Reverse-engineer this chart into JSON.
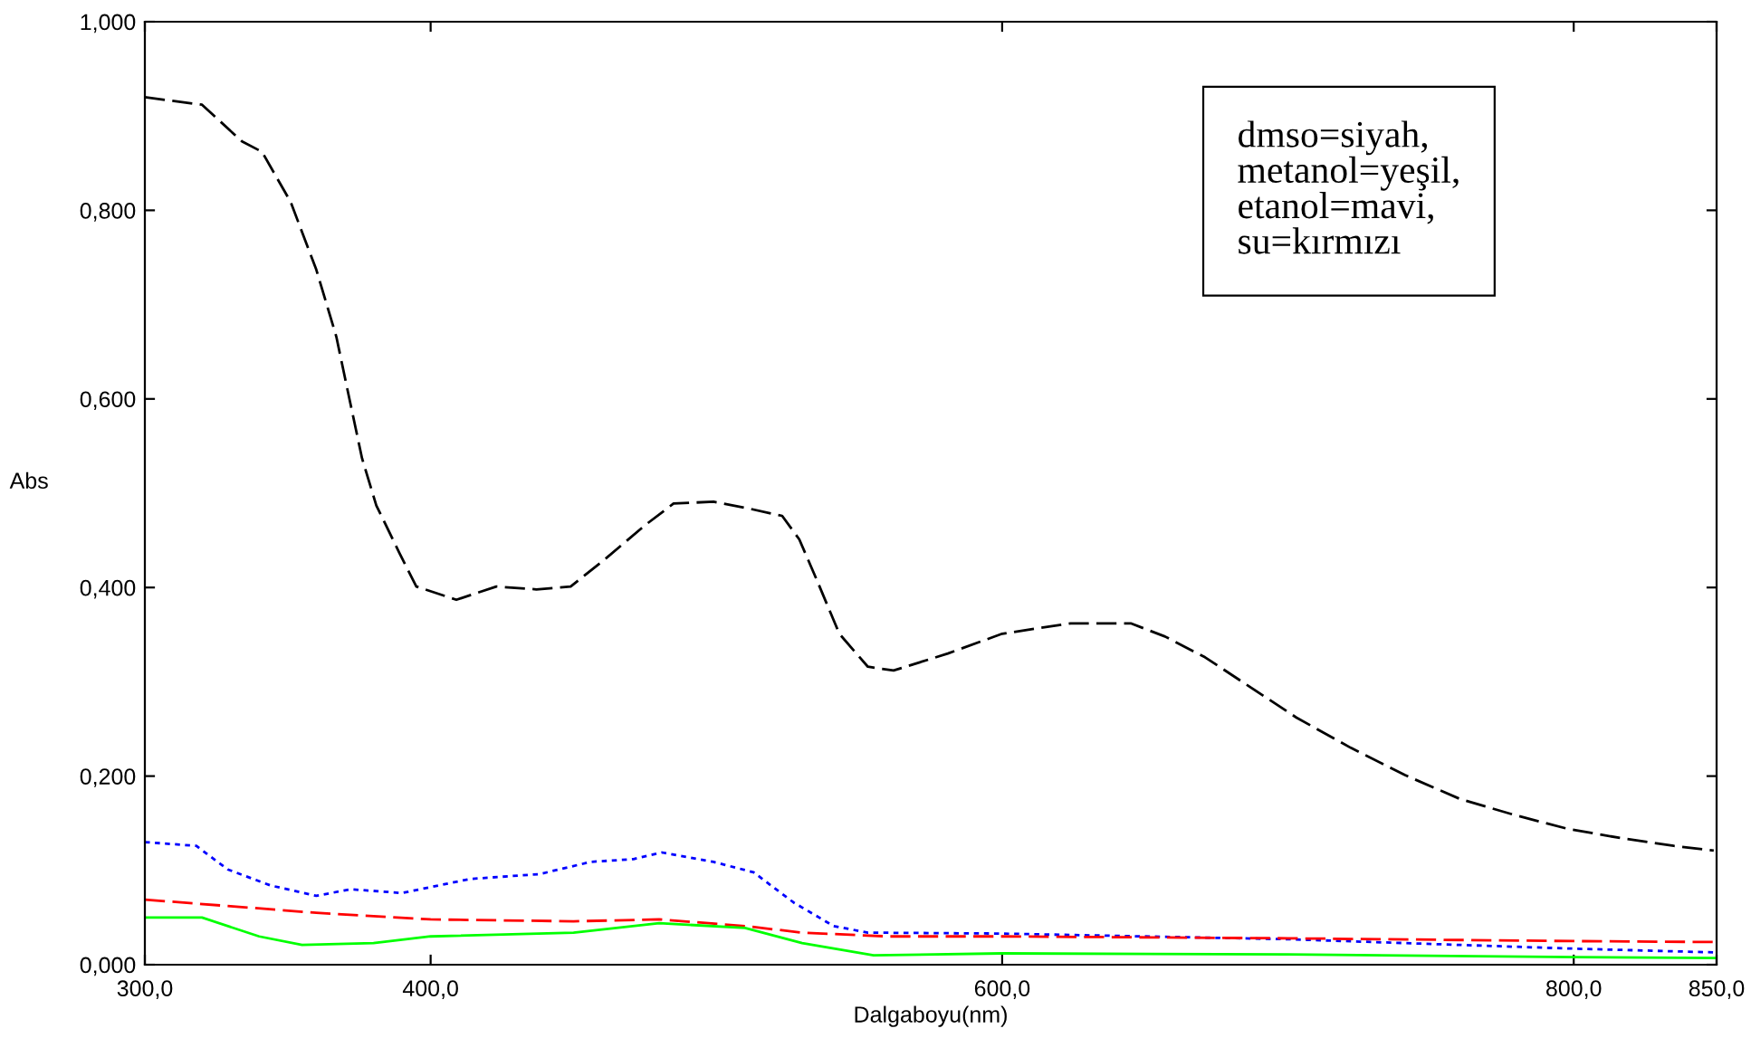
{
  "chart_data": {
    "type": "line",
    "xlabel": "Dalgaboyu(nm)",
    "ylabel": "Abs",
    "xlim": [
      300,
      850
    ],
    "ylim": [
      0,
      1
    ],
    "xticks": [
      {
        "value": 300,
        "label": "300,0"
      },
      {
        "value": 400,
        "label": "400,0"
      },
      {
        "value": 600,
        "label": "600,0"
      },
      {
        "value": 800,
        "label": "800,0"
      },
      {
        "value": 850,
        "label": "850,0"
      }
    ],
    "yticks": [
      {
        "value": 0,
        "label": "0,000"
      },
      {
        "value": 0.2,
        "label": "0,200"
      },
      {
        "value": 0.4,
        "label": "0,400"
      },
      {
        "value": 0.6,
        "label": "0,600"
      },
      {
        "value": 0.8,
        "label": "0,800"
      },
      {
        "value": 1,
        "label": "1,000"
      }
    ],
    "grid": false,
    "marker": "none",
    "annotations": [
      "dmso=siyah,\nmetanol=yeşil,\netanol=mavi,\nsu=kırmızı"
    ],
    "series": [
      {
        "color": "#000000",
        "line_style": "dashed",
        "x": [
          300,
          320,
          334,
          341,
          351,
          360,
          367,
          372,
          376,
          381,
          389,
          395,
          409,
          423,
          437,
          449,
          461,
          475,
          485,
          499,
          511,
          523,
          529,
          535,
          543,
          553,
          562,
          581,
          600,
          624,
          645,
          657,
          671,
          685,
          703,
          722,
          741,
          760,
          779,
          798,
          817,
          835,
          849
        ],
        "values": [
          0.92,
          0.912,
          0.873,
          0.862,
          0.809,
          0.737,
          0.666,
          0.594,
          0.537,
          0.487,
          0.437,
          0.401,
          0.387,
          0.401,
          0.398,
          0.401,
          0.43,
          0.466,
          0.489,
          0.491,
          0.484,
          0.476,
          0.451,
          0.409,
          0.351,
          0.316,
          0.312,
          0.33,
          0.351,
          0.362,
          0.362,
          0.348,
          0.326,
          0.298,
          0.262,
          0.23,
          0.201,
          0.176,
          0.159,
          0.144,
          0.134,
          0.126,
          0.121
        ]
      },
      {
        "color": "#0000ff",
        "line_style": "dotted",
        "x": [
          300,
          318,
          329,
          344,
          360,
          372,
          390,
          414,
          438,
          456,
          471,
          481,
          499,
          513,
          527,
          541,
          553,
          600,
          700,
          800,
          850
        ],
        "values": [
          0.13,
          0.126,
          0.101,
          0.084,
          0.073,
          0.08,
          0.076,
          0.091,
          0.096,
          0.109,
          0.112,
          0.119,
          0.109,
          0.098,
          0.066,
          0.041,
          0.034,
          0.033,
          0.027,
          0.017,
          0.013
        ]
      },
      {
        "color": "#ff0000",
        "line_style": "dashed",
        "x": [
          300,
          330,
          360,
          400,
          450,
          480,
          510,
          530,
          560,
          600,
          700,
          800,
          850
        ],
        "values": [
          0.069,
          0.062,
          0.055,
          0.048,
          0.046,
          0.048,
          0.041,
          0.034,
          0.03,
          0.03,
          0.028,
          0.025,
          0.024
        ]
      },
      {
        "color": "#00ff00",
        "line_style": "solid",
        "x": [
          300,
          320,
          340,
          355,
          380,
          400,
          450,
          480,
          510,
          530,
          555,
          600,
          700,
          800,
          850
        ],
        "values": [
          0.05,
          0.05,
          0.03,
          0.021,
          0.023,
          0.03,
          0.034,
          0.044,
          0.039,
          0.023,
          0.01,
          0.012,
          0.011,
          0.008,
          0.007
        ]
      }
    ]
  }
}
